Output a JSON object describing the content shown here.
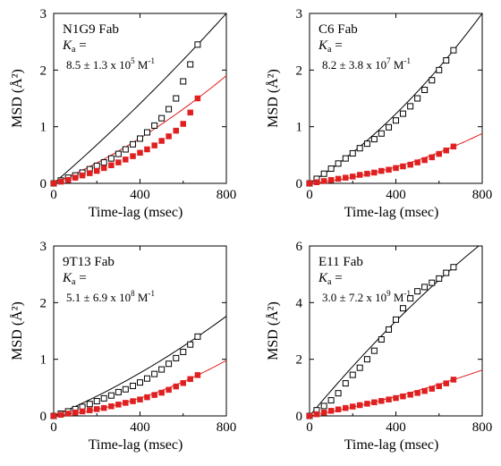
{
  "colors": {
    "open_marker": "#000000",
    "filled_marker": "#e02020",
    "fit_black": "#000000",
    "fit_red": "#e02020"
  },
  "chart_data": [
    {
      "type": "scatter",
      "title": "N1G9 Fab",
      "ka_label": "K",
      "ka_sub": "a",
      "ka_eq": " =",
      "ka_value": "8.5  ±  1.3 x 10",
      "ka_exp": "5",
      "ka_unit": " M",
      "ka_unit_exp": "-1",
      "xlabel": "Time-lag (msec)",
      "ylabel": "MSD (Å²)",
      "xlim": [
        0,
        800
      ],
      "ylim": [
        0,
        3
      ],
      "xticks": [
        "0",
        "400",
        "800"
      ],
      "yticks": [
        "0",
        "1",
        "2",
        "3"
      ],
      "x": [
        0,
        33,
        67,
        100,
        133,
        167,
        200,
        233,
        267,
        300,
        333,
        367,
        400,
        433,
        467,
        500,
        533,
        567,
        600,
        633,
        667
      ],
      "series": [
        {
          "marker": "open-square",
          "values": [
            0.0,
            0.05,
            0.1,
            0.14,
            0.19,
            0.25,
            0.31,
            0.37,
            0.44,
            0.52,
            0.6,
            0.69,
            0.79,
            0.9,
            1.02,
            1.15,
            1.31,
            1.5,
            1.8,
            2.1,
            2.45
          ],
          "fit_end": 3.0
        },
        {
          "marker": "filled-square",
          "values": [
            0.0,
            0.03,
            0.06,
            0.1,
            0.14,
            0.18,
            0.22,
            0.27,
            0.32,
            0.37,
            0.42,
            0.48,
            0.54,
            0.6,
            0.67,
            0.75,
            0.83,
            0.93,
            1.05,
            1.25,
            1.5
          ],
          "fit_end": 1.9
        }
      ]
    },
    {
      "type": "scatter",
      "title": "C6 Fab",
      "ka_label": "K",
      "ka_sub": "a",
      "ka_eq": " =",
      "ka_value": "8.2  ±  3.8 x 10",
      "ka_exp": "7",
      "ka_unit": " M",
      "ka_unit_exp": "-1",
      "xlabel": "Time-lag (msec)",
      "ylabel": "MSD (Å²)",
      "xlim": [
        0,
        800
      ],
      "ylim": [
        0,
        3
      ],
      "xticks": [
        "0",
        "400",
        "800"
      ],
      "yticks": [
        "0",
        "1",
        "2",
        "3"
      ],
      "x": [
        0,
        33,
        67,
        100,
        133,
        167,
        200,
        233,
        267,
        300,
        333,
        367,
        400,
        433,
        467,
        500,
        533,
        567,
        600,
        633,
        667
      ],
      "series": [
        {
          "marker": "open-square",
          "values": [
            0.0,
            0.08,
            0.17,
            0.26,
            0.35,
            0.44,
            0.53,
            0.62,
            0.7,
            0.78,
            0.88,
            0.99,
            1.11,
            1.23,
            1.36,
            1.5,
            1.65,
            1.82,
            2.0,
            2.17,
            2.35
          ],
          "fit_end": 3.0
        },
        {
          "marker": "filled-square",
          "values": [
            0.0,
            0.02,
            0.04,
            0.06,
            0.08,
            0.1,
            0.12,
            0.15,
            0.17,
            0.19,
            0.22,
            0.24,
            0.27,
            0.3,
            0.33,
            0.37,
            0.41,
            0.46,
            0.52,
            0.58,
            0.65
          ],
          "fit_end": 0.88
        }
      ]
    },
    {
      "type": "scatter",
      "title": "9T13 Fab",
      "ka_label": "K",
      "ka_sub": "a",
      "ka_eq": " =",
      "ka_value": "5.1  ±  6.9 x 10",
      "ka_exp": "8",
      "ka_unit": " M",
      "ka_unit_exp": "-1",
      "xlabel": "Time-lag (msec)",
      "ylabel": "MSD (Å²)",
      "xlim": [
        0,
        800
      ],
      "ylim": [
        0,
        3
      ],
      "xticks": [
        "0",
        "400",
        "800"
      ],
      "yticks": [
        "0",
        "1",
        "2",
        "3"
      ],
      "x": [
        0,
        33,
        67,
        100,
        133,
        167,
        200,
        233,
        267,
        300,
        333,
        367,
        400,
        433,
        467,
        500,
        533,
        567,
        600,
        633,
        667
      ],
      "series": [
        {
          "marker": "open-square",
          "values": [
            0.0,
            0.04,
            0.08,
            0.12,
            0.16,
            0.21,
            0.26,
            0.31,
            0.36,
            0.42,
            0.47,
            0.53,
            0.59,
            0.66,
            0.74,
            0.82,
            0.92,
            1.02,
            1.13,
            1.26,
            1.4
          ],
          "fit_end": 1.76
        },
        {
          "marker": "filled-square",
          "values": [
            0.0,
            0.02,
            0.04,
            0.06,
            0.08,
            0.1,
            0.12,
            0.14,
            0.17,
            0.2,
            0.23,
            0.26,
            0.29,
            0.33,
            0.37,
            0.41,
            0.46,
            0.52,
            0.58,
            0.65,
            0.72
          ],
          "fit_end": 0.98
        }
      ]
    },
    {
      "type": "scatter",
      "title": "E11 Fab",
      "ka_label": "K",
      "ka_sub": "a",
      "ka_eq": " =",
      "ka_value": "3.0  ±  7.2 x 10",
      "ka_exp": "9",
      "ka_unit": " M",
      "ka_unit_exp": "-1",
      "xlabel": "Time-lag (msec)",
      "ylabel": "MSD (Å²)",
      "xlim": [
        0,
        800
      ],
      "ylim": [
        0,
        6
      ],
      "xticks": [
        "0",
        "400",
        "800"
      ],
      "yticks": [
        "0",
        "2",
        "4",
        "6"
      ],
      "x": [
        0,
        33,
        67,
        100,
        133,
        167,
        200,
        233,
        267,
        300,
        333,
        367,
        400,
        433,
        467,
        500,
        533,
        567,
        600,
        633,
        667
      ],
      "series": [
        {
          "marker": "open-square",
          "values": [
            0.0,
            0.2,
            0.35,
            0.55,
            0.8,
            1.15,
            1.45,
            1.7,
            2.0,
            2.3,
            2.7,
            3.05,
            3.4,
            3.8,
            4.15,
            4.4,
            4.55,
            4.7,
            4.85,
            5.05,
            5.25
          ],
          "fit_end": 6.1
        },
        {
          "marker": "filled-square",
          "values": [
            0.0,
            0.06,
            0.12,
            0.18,
            0.23,
            0.28,
            0.33,
            0.38,
            0.43,
            0.48,
            0.53,
            0.58,
            0.63,
            0.69,
            0.75,
            0.81,
            0.88,
            0.96,
            1.05,
            1.15,
            1.28
          ],
          "fit_end": 1.62
        }
      ]
    }
  ]
}
